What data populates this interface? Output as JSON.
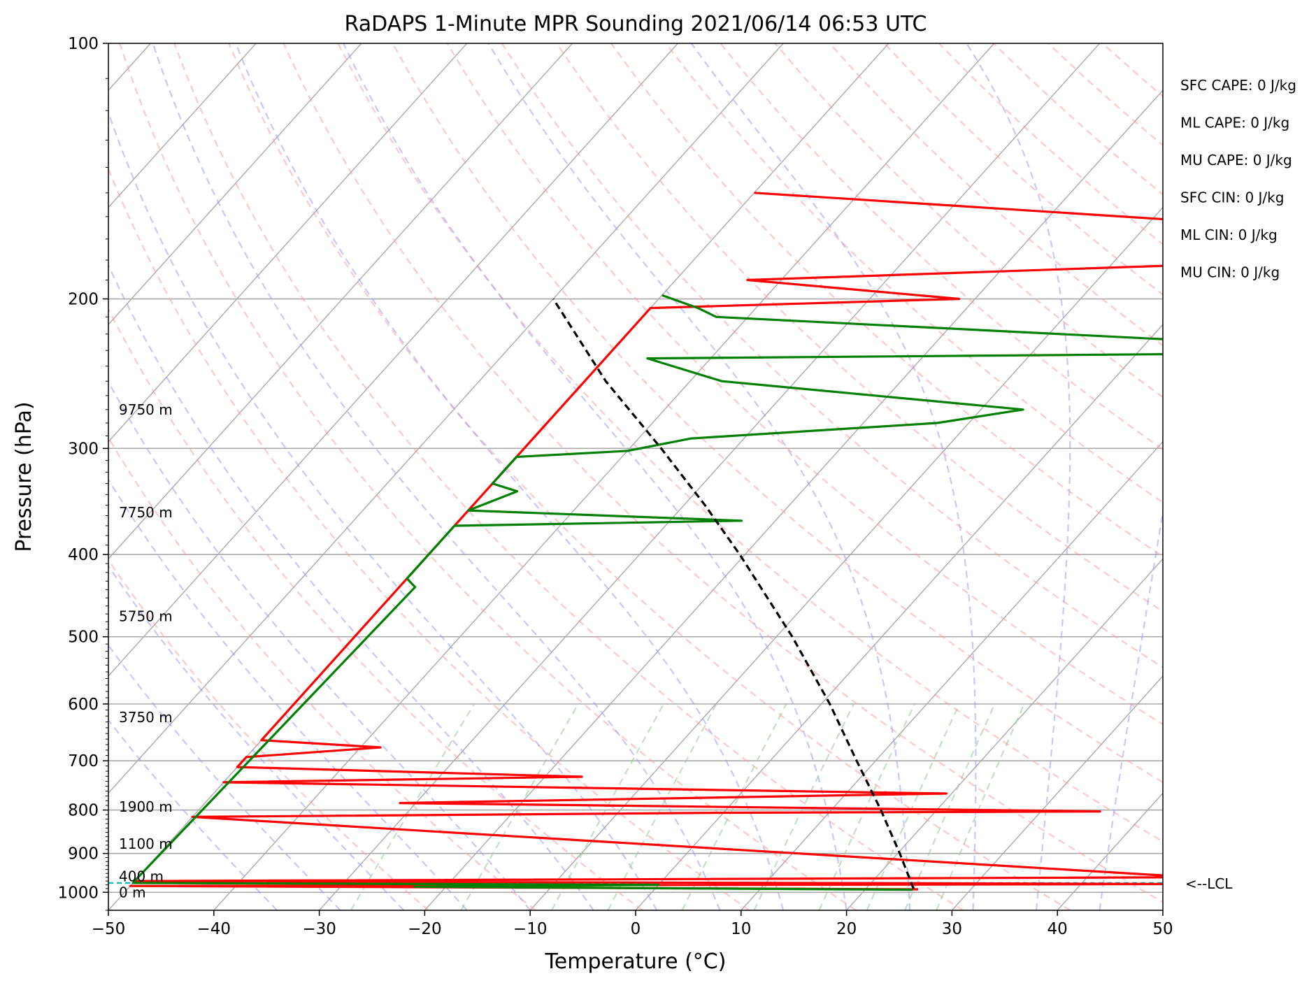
{
  "chart_data": {
    "type": "line",
    "title": "RaDAPS 1-Minute MPR Sounding 2021/06/14 06:53 UTC",
    "xlabel": "Temperature (°C)",
    "ylabel": "Pressure (hPa)",
    "xlim": [
      -50,
      50
    ],
    "ylim": [
      1050,
      100
    ],
    "y_scale": "log",
    "skew": "skew-T log-P",
    "x_ticks": [
      "−50",
      "−40",
      "−30",
      "−20",
      "−10",
      "0",
      "10",
      "20",
      "30",
      "40",
      "50"
    ],
    "x_tick_values": [
      -50,
      -40,
      -30,
      -20,
      -10,
      0,
      10,
      20,
      30,
      40,
      50
    ],
    "y_ticks": [
      "100",
      "200",
      "300",
      "400",
      "500",
      "600",
      "700",
      "800",
      "900",
      "1000"
    ],
    "y_tick_values": [
      100,
      200,
      300,
      400,
      500,
      600,
      700,
      800,
      900,
      1000
    ],
    "grid": true,
    "colors": {
      "temperature": "#ff0000",
      "dewpoint": "#008000",
      "parcel": "#000000",
      "lcl": "#00bfbf",
      "dry_adiabat": "#ff9999",
      "moist_adiabat": "#9999ff",
      "mixing_ratio": "#99cc99",
      "isotherm": "#a9a9a9",
      "isobar": "#a9a9a9"
    },
    "series": [
      {
        "key": "temperature",
        "points": [
          [
            992,
            25.0
          ],
          [
            983,
            -50
          ],
          [
            978,
            50
          ],
          [
            970,
            -50
          ],
          [
            960,
            50
          ],
          [
            815,
            -50
          ],
          [
            806,
            0
          ],
          [
            803,
            35.6
          ],
          [
            785,
            -31.5
          ],
          [
            765,
            19.5
          ],
          [
            742,
            -50
          ],
          [
            731,
            -16.5
          ],
          [
            712,
            -50
          ],
          [
            693,
            -50
          ],
          [
            675,
            -38.1
          ],
          [
            662,
            -50
          ],
          [
            205,
            -50
          ],
          [
            200,
            -21.5
          ],
          [
            190,
            -43.2
          ],
          [
            175,
            38.5
          ],
          [
            150,
            -50
          ]
        ]
      },
      {
        "key": "dewpoint",
        "points": [
          [
            993,
            24.5
          ],
          [
            985,
            -23
          ],
          [
            980,
            0
          ],
          [
            975,
            -50
          ],
          [
            962,
            -50
          ],
          [
            437,
            -48.5
          ],
          [
            427,
            -50
          ],
          [
            370,
            -50
          ],
          [
            365,
            -23.2
          ],
          [
            355,
            -50
          ],
          [
            337,
            -47
          ],
          [
            330,
            -50
          ],
          [
            307,
            -50
          ],
          [
            302,
            -40
          ],
          [
            292,
            -35
          ],
          [
            280,
            -13
          ],
          [
            270,
            -6
          ],
          [
            250,
            -37
          ],
          [
            235,
            -46
          ],
          [
            232,
            9
          ],
          [
            225,
            7.5
          ],
          [
            210,
            -43
          ],
          [
            205,
            -45.5
          ],
          [
            198,
            -50
          ]
        ]
      },
      {
        "key": "parcel",
        "points": [
          [
            990,
            24.5
          ],
          [
            900,
            20.2
          ],
          [
            800,
            14.7
          ],
          [
            700,
            8.2
          ],
          [
            600,
            0.8
          ],
          [
            500,
            -8.5
          ],
          [
            400,
            -20.5
          ],
          [
            350,
            -28
          ],
          [
            300,
            -37
          ],
          [
            250,
            -48
          ],
          [
            200,
            -60
          ]
        ]
      }
    ],
    "lcl_pressure": 975,
    "height_labels": [
      {
        "text": "9750 m",
        "p": 270
      },
      {
        "text": "7750 m",
        "p": 357
      },
      {
        "text": "5750 m",
        "p": 473
      },
      {
        "text": "3750 m",
        "p": 622
      },
      {
        "text": "1900 m",
        "p": 793
      },
      {
        "text": "1100 m",
        "p": 877
      },
      {
        "text": "400 m",
        "p": 958
      },
      {
        "text": "0 m",
        "p": 1000
      }
    ],
    "annotations": [
      "SFC CAPE: 0 J/kg",
      "ML CAPE: 0 J/kg",
      "MU CAPE: 0 J/kg",
      "SFC CIN: 0 J/kg",
      "ML CIN: 0 J/kg",
      "MU CIN: 0 J/kg"
    ],
    "lcl_label": "<--LCL"
  }
}
